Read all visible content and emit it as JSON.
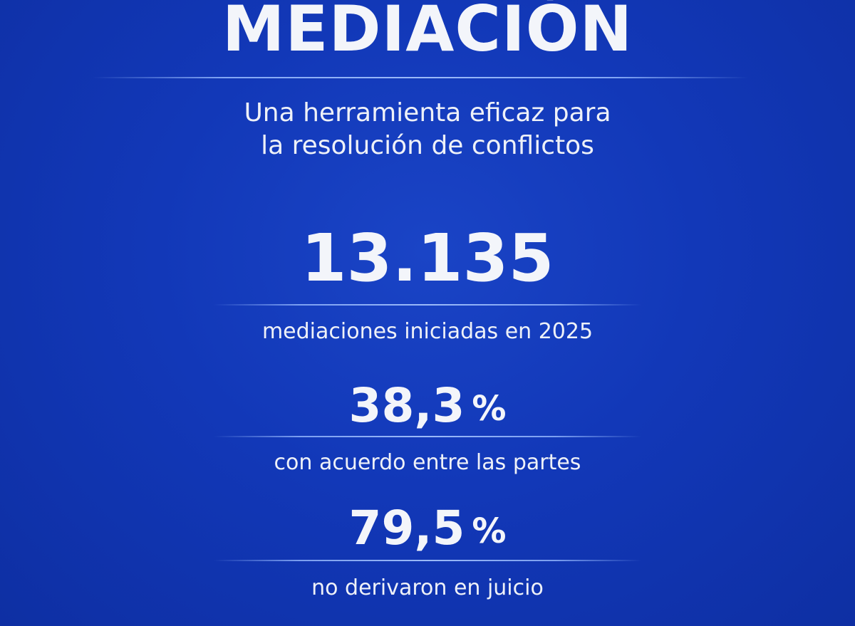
{
  "title": "MEDIACIÓN",
  "subtitle": {
    "line1": "Una herramienta eficaz para",
    "line2": "la resolución de conflictos"
  },
  "stats": [
    {
      "value": "13.135",
      "label": "mediaciones iniciadas en 2025"
    },
    {
      "value": "38,3",
      "unit": "%",
      "label": "con acuerdo entre las partes"
    },
    {
      "value": "79,5",
      "unit": "%",
      "label": "no derivaron en juicio"
    }
  ],
  "colors": {
    "background": "#1238b8",
    "text": "#f3f5fa",
    "divider": "#aac8ff"
  }
}
